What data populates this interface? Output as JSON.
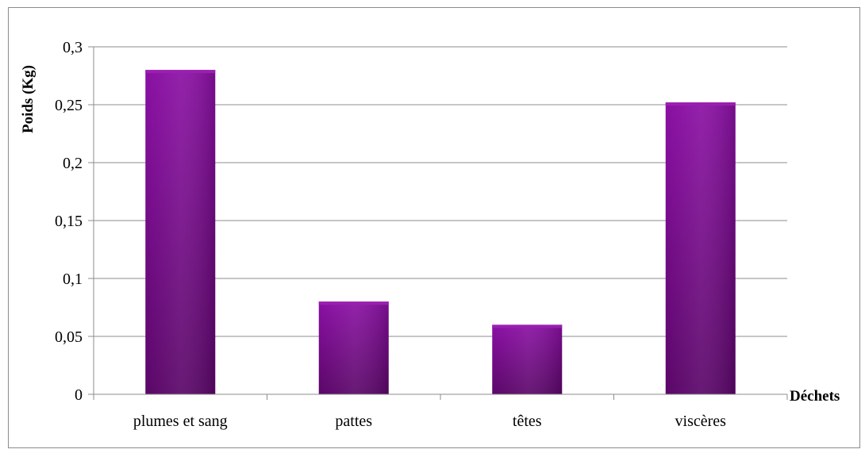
{
  "chart_data": {
    "type": "bar",
    "categories": [
      "plumes et sang",
      "pattes",
      "têtes",
      "viscères"
    ],
    "values": [
      0.28,
      0.08,
      0.06,
      0.252
    ],
    "xlabel": "Déchets",
    "ylabel": "Poids (Kg)",
    "ylim": [
      0,
      0.3
    ],
    "yticks": [
      0,
      0.05,
      0.1,
      0.15,
      0.2,
      0.25,
      0.3
    ],
    "ytick_labels": [
      "0",
      "0,05",
      "0,1",
      "0,15",
      "0,2",
      "0,25",
      "0,3"
    ],
    "grid": true,
    "legend": "none",
    "bar_color": "#7a0a8f",
    "bar_color_dark": "#520662",
    "bar_color_light": "#9a1fb0"
  }
}
